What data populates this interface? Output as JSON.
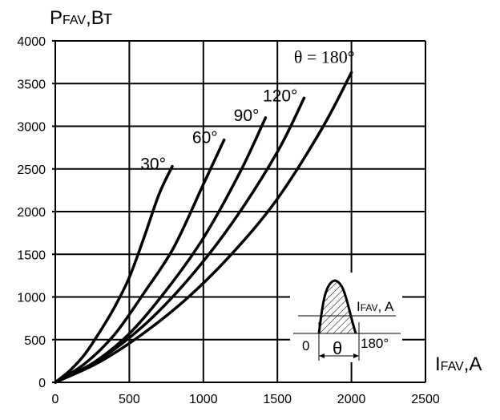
{
  "chart_data": {
    "type": "line",
    "ylabel": {
      "main": "P",
      "sub": "FAV",
      "unit": ",Вт"
    },
    "xlabel": {
      "main": "I",
      "sub": "FAV",
      "unit": ",A"
    },
    "xlim": [
      0,
      2500
    ],
    "ylim": [
      0,
      4000
    ],
    "xticks": [
      0,
      500,
      1000,
      1500,
      2000,
      2500
    ],
    "yticks": [
      0,
      500,
      1000,
      1500,
      2000,
      2500,
      3000,
      3500,
      4000
    ],
    "grid": true,
    "series": [
      {
        "name": "30°",
        "label_text": "30°",
        "end_label": false,
        "x": [
          0,
          100,
          200,
          300,
          400,
          500,
          600,
          700,
          790
        ],
        "y": [
          0,
          140,
          330,
          590,
          880,
          1230,
          1700,
          2200,
          2530
        ]
      },
      {
        "name": "60°",
        "label_text": "60°",
        "end_label": false,
        "x": [
          0,
          200,
          400,
          600,
          800,
          1000,
          1140
        ],
        "y": [
          0,
          220,
          560,
          1050,
          1580,
          2320,
          2840
        ]
      },
      {
        "name": "90°",
        "label_text": "90°",
        "end_label": false,
        "x": [
          0,
          250,
          500,
          750,
          1000,
          1250,
          1420
        ],
        "y": [
          0,
          220,
          570,
          1080,
          1690,
          2470,
          3100
        ]
      },
      {
        "name": "120°",
        "label_text": "120°",
        "end_label": false,
        "x": [
          0,
          300,
          600,
          900,
          1200,
          1500,
          1680
        ],
        "y": [
          0,
          270,
          670,
          1210,
          1880,
          2700,
          3330
        ]
      },
      {
        "name": "180°",
        "label_text": "θ = 180°",
        "end_label": true,
        "x": [
          0,
          300,
          600,
          900,
          1200,
          1500,
          1800,
          2000
        ],
        "y": [
          0,
          240,
          580,
          1000,
          1520,
          2150,
          2970,
          3630
        ]
      }
    ]
  },
  "inset": {
    "label": "I",
    "label_sub": "FAV",
    "label_unit": ", A",
    "zero": "0",
    "theta": "θ",
    "end": "180°"
  }
}
